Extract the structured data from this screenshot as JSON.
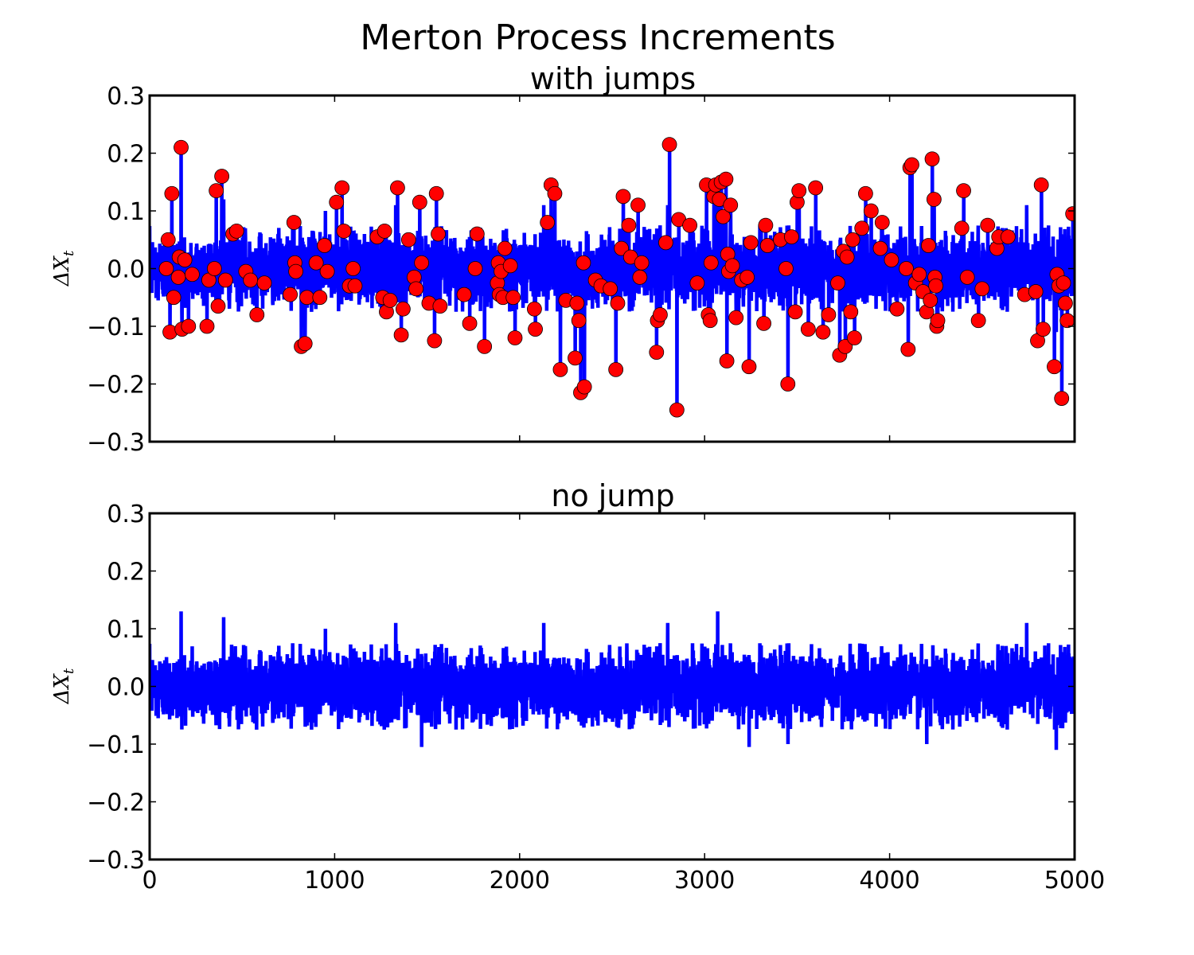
{
  "figure_title": "Merton Process Increments",
  "colors": {
    "series": "#0000ff",
    "marker": "#ff0000",
    "marker_edge": "#000000",
    "axes": "#000000",
    "background": "#ffffff"
  },
  "chart_data": [
    {
      "type": "line",
      "title": "with jumps",
      "xlabel": "",
      "ylabel": "ΔXt",
      "ylabel_main": "ΔX",
      "ylabel_sub": "t",
      "xlim": [
        0,
        5000
      ],
      "ylim": [
        -0.3,
        0.3
      ],
      "x_ticks": [
        0,
        1000,
        2000,
        3000,
        4000,
        5000
      ],
      "x_tick_labels": [
        "",
        "",
        "",
        "",
        "",
        ""
      ],
      "y_ticks": [
        -0.3,
        -0.2,
        -0.1,
        0.0,
        0.1,
        0.2,
        0.3
      ],
      "y_tick_labels": [
        "−0.3",
        "−0.2",
        "−0.1",
        "0.0",
        "0.1",
        "0.2",
        "0.3"
      ],
      "series": [
        {
          "name": "increments",
          "style": "line",
          "color": "#0000ff",
          "n": 5000,
          "envelope_amplitude": 0.075,
          "diffusion_std": 0.03
        },
        {
          "name": "jumps",
          "style": "markers",
          "color": "#ff0000",
          "points": [
            [
              100,
              0.05
            ],
            [
              90,
              0.0
            ],
            [
              110,
              -0.11
            ],
            [
              120,
              0.13
            ],
            [
              130,
              -0.05
            ],
            [
              155,
              -0.015
            ],
            [
              160,
              0.02
            ],
            [
              170,
              0.21
            ],
            [
              175,
              -0.105
            ],
            [
              190,
              0.015
            ],
            [
              210,
              -0.1
            ],
            [
              230,
              -0.01
            ],
            [
              310,
              -0.1
            ],
            [
              320,
              -0.02
            ],
            [
              350,
              0.0
            ],
            [
              360,
              0.135
            ],
            [
              370,
              -0.065
            ],
            [
              390,
              0.16
            ],
            [
              410,
              -0.02
            ],
            [
              450,
              0.06
            ],
            [
              470,
              0.065
            ],
            [
              520,
              -0.005
            ],
            [
              545,
              -0.02
            ],
            [
              580,
              -0.08
            ],
            [
              620,
              -0.025
            ],
            [
              760,
              -0.045
            ],
            [
              780,
              0.08
            ],
            [
              785,
              0.01
            ],
            [
              790,
              -0.005
            ],
            [
              820,
              -0.135
            ],
            [
              840,
              -0.13
            ],
            [
              850,
              -0.05
            ],
            [
              900,
              0.01
            ],
            [
              920,
              -0.05
            ],
            [
              945,
              0.04
            ],
            [
              960,
              -0.005
            ],
            [
              1010,
              0.115
            ],
            [
              1040,
              0.14
            ],
            [
              1050,
              0.065
            ],
            [
              1080,
              -0.03
            ],
            [
              1100,
              0.0
            ],
            [
              1110,
              -0.03
            ],
            [
              1230,
              0.055
            ],
            [
              1260,
              -0.05
            ],
            [
              1270,
              0.065
            ],
            [
              1280,
              -0.075
            ],
            [
              1300,
              -0.055
            ],
            [
              1340,
              0.14
            ],
            [
              1360,
              -0.115
            ],
            [
              1370,
              -0.07
            ],
            [
              1400,
              0.05
            ],
            [
              1430,
              -0.015
            ],
            [
              1440,
              -0.035
            ],
            [
              1460,
              0.115
            ],
            [
              1470,
              0.01
            ],
            [
              1510,
              -0.06
            ],
            [
              1540,
              -0.125
            ],
            [
              1550,
              0.13
            ],
            [
              1560,
              0.06
            ],
            [
              1570,
              -0.065
            ],
            [
              1700,
              -0.045
            ],
            [
              1730,
              -0.095
            ],
            [
              1760,
              0.0
            ],
            [
              1770,
              0.06
            ],
            [
              1810,
              -0.135
            ],
            [
              1880,
              -0.025
            ],
            [
              1885,
              0.01
            ],
            [
              1890,
              -0.045
            ],
            [
              1900,
              -0.005
            ],
            [
              1910,
              -0.05
            ],
            [
              1920,
              0.035
            ],
            [
              1950,
              0.005
            ],
            [
              1965,
              -0.05
            ],
            [
              1975,
              -0.12
            ],
            [
              2080,
              -0.07
            ],
            [
              2085,
              -0.105
            ],
            [
              2150,
              0.08
            ],
            [
              2170,
              0.145
            ],
            [
              2190,
              0.13
            ],
            [
              2220,
              -0.175
            ],
            [
              2250,
              -0.055
            ],
            [
              2300,
              -0.155
            ],
            [
              2310,
              -0.06
            ],
            [
              2320,
              -0.09
            ],
            [
              2330,
              -0.215
            ],
            [
              2345,
              0.01
            ],
            [
              2350,
              -0.205
            ],
            [
              2410,
              -0.02
            ],
            [
              2440,
              -0.03
            ],
            [
              2490,
              -0.035
            ],
            [
              2520,
              -0.175
            ],
            [
              2530,
              -0.06
            ],
            [
              2550,
              0.035
            ],
            [
              2560,
              0.125
            ],
            [
              2590,
              0.075
            ],
            [
              2600,
              0.02
            ],
            [
              2640,
              0.11
            ],
            [
              2650,
              -0.015
            ],
            [
              2660,
              0.01
            ],
            [
              2740,
              -0.145
            ],
            [
              2745,
              -0.09
            ],
            [
              2760,
              -0.08
            ],
            [
              2790,
              0.045
            ],
            [
              2810,
              0.215
            ],
            [
              2850,
              -0.245
            ],
            [
              2860,
              0.085
            ],
            [
              2920,
              0.075
            ],
            [
              2960,
              -0.025
            ],
            [
              3010,
              0.145
            ],
            [
              3020,
              -0.08
            ],
            [
              3030,
              -0.09
            ],
            [
              3035,
              0.01
            ],
            [
              3050,
              0.125
            ],
            [
              3060,
              0.145
            ],
            [
              3080,
              0.12
            ],
            [
              3090,
              0.15
            ],
            [
              3100,
              0.09
            ],
            [
              3115,
              0.155
            ],
            [
              3120,
              -0.16
            ],
            [
              3125,
              0.025
            ],
            [
              3130,
              -0.005
            ],
            [
              3140,
              0.11
            ],
            [
              3150,
              0.005
            ],
            [
              3170,
              -0.085
            ],
            [
              3200,
              -0.02
            ],
            [
              3230,
              -0.015
            ],
            [
              3240,
              -0.17
            ],
            [
              3250,
              0.045
            ],
            [
              3320,
              -0.095
            ],
            [
              3330,
              0.075
            ],
            [
              3340,
              0.04
            ],
            [
              3410,
              0.05
            ],
            [
              3440,
              0.0
            ],
            [
              3450,
              -0.2
            ],
            [
              3470,
              0.055
            ],
            [
              3490,
              -0.075
            ],
            [
              3500,
              0.115
            ],
            [
              3510,
              0.135
            ],
            [
              3560,
              -0.105
            ],
            [
              3600,
              0.14
            ],
            [
              3640,
              -0.11
            ],
            [
              3670,
              -0.08
            ],
            [
              3720,
              -0.025
            ],
            [
              3730,
              -0.15
            ],
            [
              3750,
              0.03
            ],
            [
              3760,
              -0.135
            ],
            [
              3770,
              0.02
            ],
            [
              3790,
              -0.075
            ],
            [
              3800,
              0.05
            ],
            [
              3810,
              -0.12
            ],
            [
              3850,
              0.07
            ],
            [
              3870,
              0.13
            ],
            [
              3900,
              0.1
            ],
            [
              3950,
              0.035
            ],
            [
              3960,
              0.08
            ],
            [
              4010,
              0.015
            ],
            [
              4040,
              -0.07
            ],
            [
              4090,
              0.0
            ],
            [
              4100,
              -0.14
            ],
            [
              4110,
              0.175
            ],
            [
              4120,
              0.18
            ],
            [
              4140,
              -0.025
            ],
            [
              4160,
              -0.01
            ],
            [
              4180,
              -0.04
            ],
            [
              4200,
              -0.075
            ],
            [
              4210,
              0.04
            ],
            [
              4220,
              -0.055
            ],
            [
              4230,
              0.19
            ],
            [
              4240,
              0.12
            ],
            [
              4245,
              -0.015
            ],
            [
              4250,
              -0.03
            ],
            [
              4255,
              -0.1
            ],
            [
              4260,
              -0.09
            ],
            [
              4390,
              0.07
            ],
            [
              4400,
              0.135
            ],
            [
              4420,
              -0.015
            ],
            [
              4480,
              -0.09
            ],
            [
              4500,
              -0.035
            ],
            [
              4530,
              0.075
            ],
            [
              4580,
              0.035
            ],
            [
              4590,
              0.055
            ],
            [
              4640,
              0.055
            ],
            [
              4730,
              -0.045
            ],
            [
              4790,
              -0.04
            ],
            [
              4800,
              -0.125
            ],
            [
              4820,
              0.145
            ],
            [
              4830,
              -0.105
            ],
            [
              4890,
              -0.17
            ],
            [
              4905,
              -0.01
            ],
            [
              4915,
              -0.03
            ],
            [
              4930,
              -0.225
            ],
            [
              4940,
              -0.025
            ],
            [
              4950,
              -0.06
            ],
            [
              4960,
              -0.09
            ],
            [
              4990,
              0.095
            ]
          ]
        }
      ]
    },
    {
      "type": "line",
      "title": "no jump",
      "xlabel": "",
      "ylabel": "ΔXt",
      "ylabel_main": "ΔX",
      "ylabel_sub": "t",
      "xlim": [
        0,
        5000
      ],
      "ylim": [
        -0.3,
        0.3
      ],
      "x_ticks": [
        0,
        1000,
        2000,
        3000,
        4000,
        5000
      ],
      "x_tick_labels": [
        "0",
        "1000",
        "2000",
        "3000",
        "4000",
        "5000"
      ],
      "y_ticks": [
        -0.3,
        -0.2,
        -0.1,
        0.0,
        0.1,
        0.2,
        0.3
      ],
      "y_tick_labels": [
        "−0.3",
        "−0.2",
        "−0.1",
        "0.0",
        "0.1",
        "0.2",
        "0.3"
      ],
      "series": [
        {
          "name": "increments",
          "style": "line",
          "color": "#0000ff",
          "n": 5000,
          "envelope_amplitude": 0.075,
          "diffusion_std": 0.03,
          "max": 0.13,
          "min": -0.11
        }
      ]
    }
  ]
}
